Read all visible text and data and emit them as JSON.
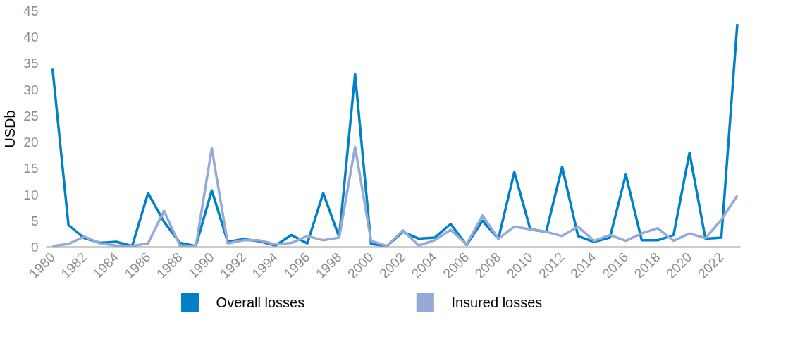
{
  "chart_data": {
    "type": "line",
    "ylabel": "USDb",
    "x": [
      1980,
      1981,
      1982,
      1983,
      1984,
      1985,
      1986,
      1987,
      1988,
      1989,
      1990,
      1991,
      1992,
      1993,
      1994,
      1995,
      1996,
      1997,
      1998,
      1999,
      2000,
      2001,
      2002,
      2003,
      2004,
      2005,
      2006,
      2007,
      2008,
      2009,
      2010,
      2011,
      2012,
      2013,
      2014,
      2015,
      2016,
      2017,
      2018,
      2019,
      2020,
      2021,
      2022,
      2023
    ],
    "series": [
      {
        "name": "Overall losses",
        "color": "#0080c8",
        "values": [
          34,
          4.2,
          1.7,
          0.8,
          1.0,
          0.2,
          10.3,
          4.8,
          0.8,
          0.2,
          10.8,
          1.0,
          1.5,
          1.1,
          0.3,
          2.3,
          0.7,
          10.3,
          1.9,
          33,
          0.6,
          0.2,
          2.9,
          1.6,
          1.8,
          4.4,
          0.4,
          5.0,
          1.6,
          14.3,
          3.4,
          2.9,
          15.3,
          2.1,
          1.0,
          1.8,
          13.8,
          1.3,
          1.3,
          2.3,
          18.0,
          1.6,
          1.8,
          42.5
        ]
      },
      {
        "name": "Insured losses",
        "color": "#94aad8",
        "values": [
          0.2,
          0.6,
          2.0,
          0.7,
          0.3,
          0.2,
          0.7,
          6.9,
          0.3,
          0.2,
          18.8,
          0.7,
          1.3,
          1.3,
          0.5,
          0.8,
          2.1,
          1.3,
          1.8,
          19.1,
          1.2,
          0.2,
          3.2,
          0.3,
          1.3,
          3.3,
          0.5,
          6.0,
          1.6,
          3.9,
          3.4,
          2.9,
          2.1,
          3.9,
          1.2,
          2.3,
          1.2,
          2.6,
          3.6,
          1.2,
          2.6,
          1.7,
          5.2,
          9.8
        ]
      }
    ],
    "xlim": [
      1979.6,
      2023.2
    ],
    "ylim": [
      0,
      45
    ],
    "xticks": [
      1980,
      1982,
      1984,
      1986,
      1988,
      1990,
      1992,
      1994,
      1996,
      1998,
      2000,
      2002,
      2004,
      2006,
      2008,
      2010,
      2012,
      2014,
      2016,
      2018,
      2020,
      2022
    ],
    "yticks": [
      0,
      5,
      10,
      15,
      20,
      25,
      30,
      35,
      40,
      45
    ],
    "grid": false,
    "legend": "bottom",
    "marker": "none",
    "line_style": "solid"
  }
}
